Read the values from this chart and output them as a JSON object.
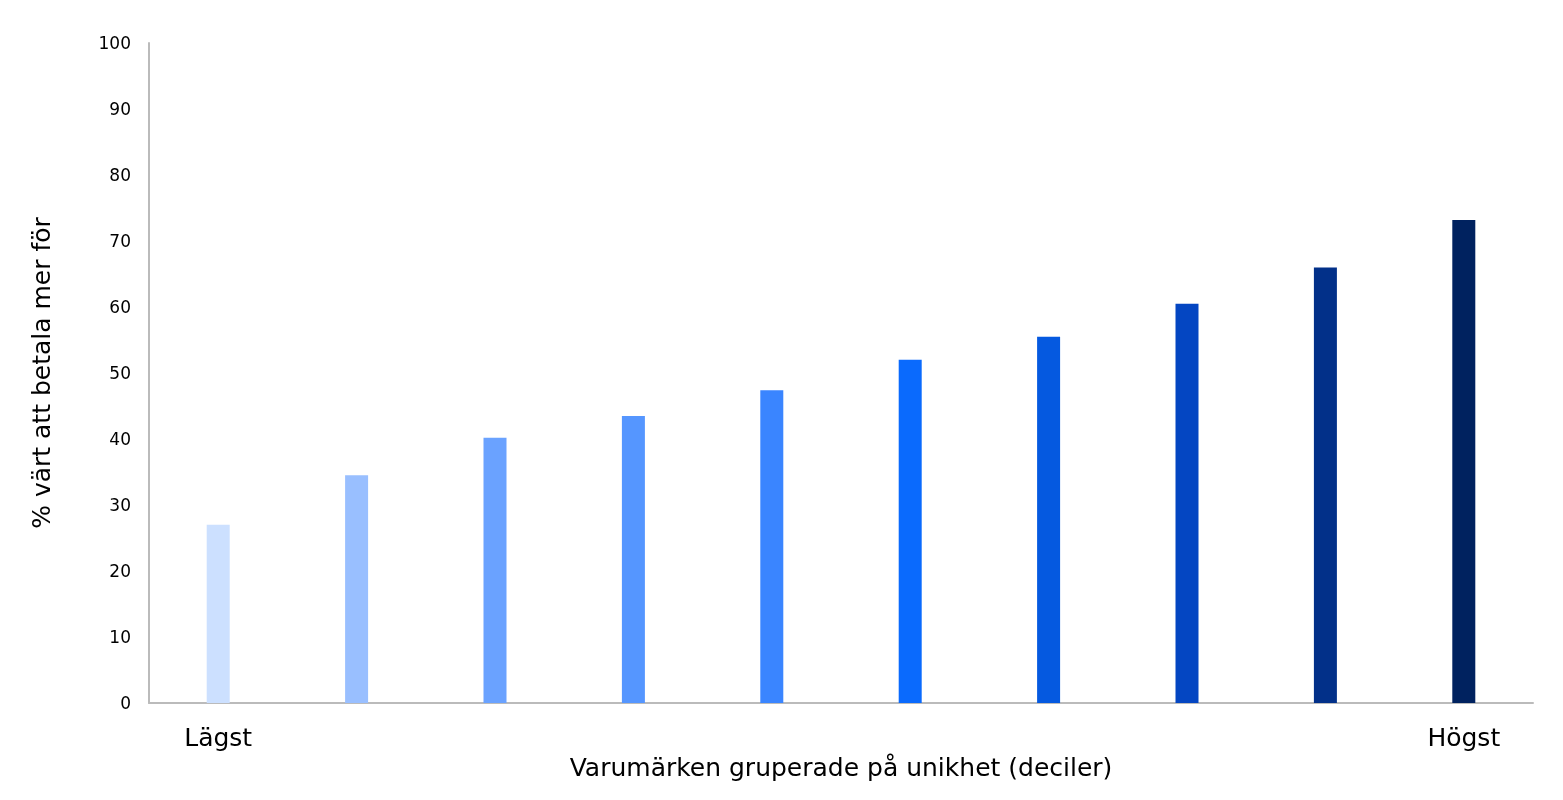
{
  "chart_data": {
    "type": "bar",
    "ylabel": "% värt att betala mer för",
    "xlabel": "Varumärken gruperade på unikhet (deciler)",
    "categories": [
      "Lägst",
      null,
      null,
      null,
      null,
      null,
      null,
      null,
      null,
      "Högst"
    ],
    "values": [
      27,
      34.5,
      40.2,
      43.5,
      47.4,
      52,
      55.5,
      60.5,
      66,
      73.2
    ],
    "colors": [
      "#cce0ff",
      "#99bfff",
      "#6aa2ff",
      "#5596ff",
      "#3a85ff",
      "#0a6afd",
      "#0559e0",
      "#0446c2",
      "#023089",
      "#00225f"
    ],
    "ylim": [
      0,
      100
    ],
    "yticks": [
      0,
      10,
      20,
      30,
      40,
      50,
      60,
      70,
      80,
      90,
      100
    ]
  }
}
